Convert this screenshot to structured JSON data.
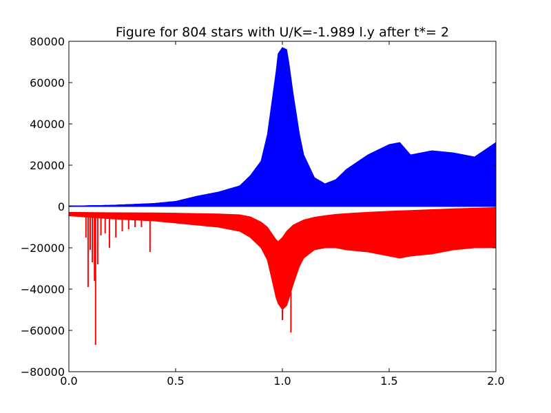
{
  "chart_data": {
    "type": "line",
    "title": "Figure for 804 stars with U/K=-1.989 l.y after t*= 2",
    "xlabel": "",
    "ylabel": "",
    "xlim": [
      0.0,
      2.0
    ],
    "ylim": [
      -80000,
      80000
    ],
    "x_ticks": [
      0.0,
      0.5,
      1.0,
      1.5,
      2.0
    ],
    "x_tick_labels": [
      "0.0",
      "0.5",
      "1.0",
      "1.5",
      "2.0"
    ],
    "y_ticks": [
      80000,
      60000,
      40000,
      20000,
      0,
      -20000,
      -40000,
      -60000,
      -80000
    ],
    "y_tick_labels": [
      "80000",
      "60000",
      "40000",
      "20000",
      "0",
      "−20000",
      "−40000",
      "−60000",
      "−80000"
    ],
    "grid": false,
    "legend": "none",
    "series": [
      {
        "color": "#0000ff",
        "envelope": {
          "x": [
            0.0,
            0.2,
            0.4,
            0.5,
            0.6,
            0.7,
            0.8,
            0.85,
            0.9,
            0.93,
            0.95,
            0.97,
            0.98,
            1.0,
            1.02,
            1.03,
            1.05,
            1.08,
            1.1,
            1.15,
            1.2,
            1.25,
            1.3,
            1.4,
            1.5,
            1.55,
            1.6,
            1.7,
            1.8,
            1.9,
            2.0
          ],
          "upper": [
            200,
            600,
            1500,
            2500,
            5000,
            7000,
            10000,
            15000,
            22000,
            35000,
            50000,
            65000,
            74000,
            77000,
            76000,
            70000,
            55000,
            35000,
            25000,
            14000,
            11000,
            13000,
            18000,
            25000,
            30000,
            31000,
            25000,
            27000,
            26000,
            24000,
            31000
          ],
          "lower": [
            0,
            0,
            0,
            0,
            0,
            0,
            0,
            0,
            0,
            0,
            0,
            0,
            0,
            0,
            0,
            0,
            0,
            0,
            0,
            0,
            0,
            0,
            0,
            0,
            0,
            0,
            0,
            0,
            0,
            0,
            0
          ]
        }
      },
      {
        "color": "#ff0000",
        "envelope": {
          "x": [
            0.0,
            0.2,
            0.4,
            0.5,
            0.6,
            0.7,
            0.8,
            0.85,
            0.9,
            0.93,
            0.95,
            0.97,
            0.98,
            1.0,
            1.02,
            1.03,
            1.05,
            1.08,
            1.1,
            1.15,
            1.2,
            1.25,
            1.3,
            1.4,
            1.5,
            1.55,
            1.6,
            1.7,
            1.8,
            1.9,
            2.0
          ],
          "upper": [
            -2800,
            -3000,
            -3100,
            -3200,
            -3400,
            -3600,
            -4000,
            -5000,
            -7500,
            -10000,
            -13000,
            -16000,
            -17000,
            -15000,
            -12000,
            -11000,
            -9000,
            -7500,
            -6500,
            -5200,
            -4400,
            -3800,
            -3400,
            -2800,
            -2300,
            -2100,
            -1900,
            -1500,
            -1100,
            -800,
            -500
          ],
          "lower": [
            -4500,
            -6000,
            -7000,
            -8000,
            -9000,
            -10000,
            -12000,
            -15000,
            -20000,
            -26000,
            -35000,
            -44000,
            -47000,
            -50000,
            -48000,
            -45000,
            -38000,
            -29000,
            -25000,
            -21000,
            -20000,
            -20000,
            -21000,
            -22000,
            -24000,
            -25000,
            -24000,
            -23000,
            -21000,
            -20000,
            -20000
          ]
        },
        "spikes": [
          {
            "x": 0.08,
            "y": -15000
          },
          {
            "x": 0.09,
            "y": -39000
          },
          {
            "x": 0.1,
            "y": -21000
          },
          {
            "x": 0.11,
            "y": -27000
          },
          {
            "x": 0.12,
            "y": -36000
          },
          {
            "x": 0.125,
            "y": -67000
          },
          {
            "x": 0.135,
            "y": -28000
          },
          {
            "x": 0.15,
            "y": -14000
          },
          {
            "x": 0.17,
            "y": -13000
          },
          {
            "x": 0.19,
            "y": -20000
          },
          {
            "x": 0.22,
            "y": -15000
          },
          {
            "x": 0.25,
            "y": -12000
          },
          {
            "x": 0.28,
            "y": -11000
          },
          {
            "x": 0.31,
            "y": -10000
          },
          {
            "x": 0.34,
            "y": -10000
          },
          {
            "x": 0.38,
            "y": -22000
          },
          {
            "x": 1.0,
            "y": -55000
          },
          {
            "x": 1.04,
            "y": -61000
          }
        ]
      }
    ]
  }
}
